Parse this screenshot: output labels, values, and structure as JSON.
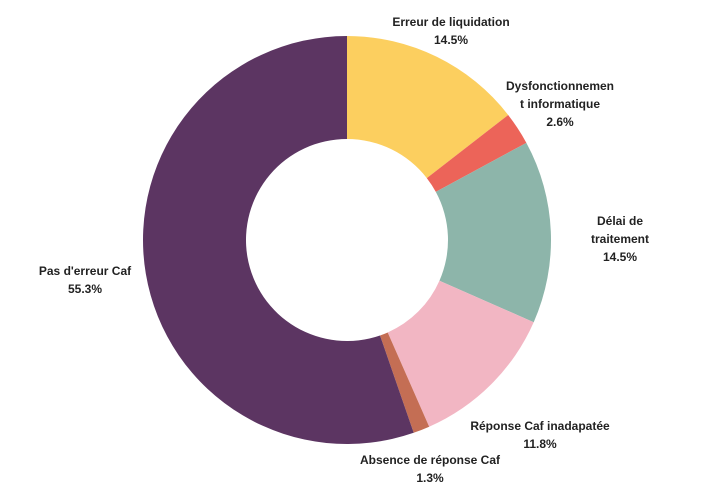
{
  "chart_data": {
    "type": "donut",
    "categories": [
      "Erreur de liquidation",
      "Dysfonctionnement informatique",
      "Délai de traitement",
      "Réponse Caf inadapatée",
      "Absence de réponse Caf",
      "Pas d'erreur Caf"
    ],
    "values": [
      14.5,
      2.6,
      14.5,
      11.8,
      1.3,
      55.3
    ],
    "value_labels": [
      "14.5%",
      "2.6%",
      "14.5%",
      "11.8%",
      "1.3%",
      "55.3%"
    ],
    "colors": [
      "#fccf5f",
      "#ec6459",
      "#8db5aa",
      "#f2b6c3",
      "#c46e54",
      "#5c3562"
    ]
  }
}
